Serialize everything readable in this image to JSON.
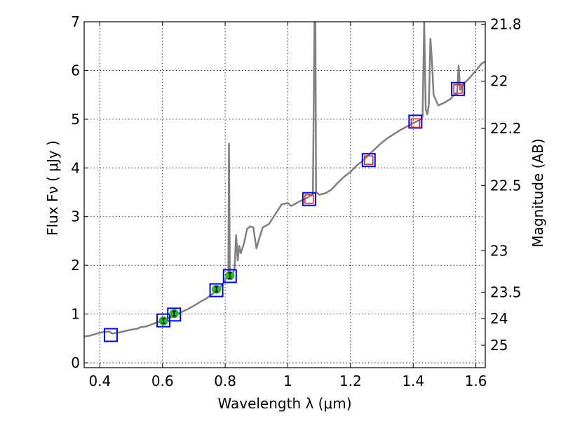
{
  "chart_data": {
    "type": "line",
    "xlabel": "Wavelength  λ (μm)",
    "ylabel": "Flux  Fν  ( μJy )",
    "ylabel_right": "Magnitude (AB)",
    "xlim": [
      0.35,
      1.63
    ],
    "ylim": [
      -0.1,
      7
    ],
    "x_ticks": [
      0.4,
      0.6,
      0.8,
      1.0,
      1.2,
      1.4,
      1.6
    ],
    "x_tick_labels": [
      "0.4",
      "0.6",
      "0.8",
      "1",
      "1.2",
      "1.4",
      "1.6"
    ],
    "y_ticks": [
      0,
      1,
      2,
      3,
      4,
      5,
      6,
      7
    ],
    "y_tick_labels": [
      "0",
      "1",
      "2",
      "3",
      "4",
      "5",
      "6",
      "7"
    ],
    "right_ticks": [
      {
        "flux": 6.95,
        "label": "21.8"
      },
      {
        "flux": 5.78,
        "label": "22"
      },
      {
        "flux": 4.81,
        "label": "22.2"
      },
      {
        "flux": 3.64,
        "label": "22.5"
      },
      {
        "flux": 2.3,
        "label": "23"
      },
      {
        "flux": 1.45,
        "label": "23.5"
      },
      {
        "flux": 0.91,
        "label": "24"
      },
      {
        "flux": 0.36,
        "label": "25"
      }
    ],
    "grid": true,
    "colors": {
      "model": "#808080",
      "observed_box": "#0000ff",
      "model_box": "#dd2222",
      "point": "#22bb22"
    },
    "series": [
      {
        "role": "model-spectrum",
        "points": [
          [
            0.35,
            0.54
          ],
          [
            0.37,
            0.56
          ],
          [
            0.39,
            0.6
          ],
          [
            0.41,
            0.63
          ],
          [
            0.43,
            0.64
          ],
          [
            0.44,
            0.6
          ],
          [
            0.46,
            0.62
          ],
          [
            0.48,
            0.65
          ],
          [
            0.5,
            0.68
          ],
          [
            0.52,
            0.7
          ],
          [
            0.53,
            0.73
          ],
          [
            0.55,
            0.75
          ],
          [
            0.57,
            0.8
          ],
          [
            0.58,
            0.82
          ],
          [
            0.6,
            0.86
          ],
          [
            0.62,
            0.92
          ],
          [
            0.64,
            0.98
          ],
          [
            0.66,
            1.04
          ],
          [
            0.68,
            1.1
          ],
          [
            0.7,
            1.17
          ],
          [
            0.72,
            1.25
          ],
          [
            0.74,
            1.32
          ],
          [
            0.76,
            1.42
          ],
          [
            0.78,
            1.52
          ],
          [
            0.79,
            1.6
          ],
          [
            0.8,
            1.68
          ],
          [
            0.805,
            1.8
          ],
          [
            0.81,
            1.8
          ],
          [
            0.812,
            4.5
          ],
          [
            0.815,
            1.82
          ],
          [
            0.82,
            1.72
          ],
          [
            0.83,
            1.95
          ],
          [
            0.835,
            2.62
          ],
          [
            0.84,
            2.1
          ],
          [
            0.845,
            2.4
          ],
          [
            0.85,
            2.25
          ],
          [
            0.86,
            2.45
          ],
          [
            0.87,
            2.75
          ],
          [
            0.88,
            2.8
          ],
          [
            0.89,
            2.78
          ],
          [
            0.895,
            2.55
          ],
          [
            0.9,
            2.35
          ],
          [
            0.91,
            2.58
          ],
          [
            0.92,
            2.78
          ],
          [
            0.94,
            2.85
          ],
          [
            0.96,
            3.05
          ],
          [
            0.98,
            3.25
          ],
          [
            1.0,
            3.28
          ],
          [
            1.01,
            3.22
          ],
          [
            1.02,
            3.25
          ],
          [
            1.04,
            3.32
          ],
          [
            1.06,
            3.38
          ],
          [
            1.07,
            3.42
          ],
          [
            1.08,
            3.45
          ],
          [
            1.085,
            7.0
          ],
          [
            1.088,
            7.0
          ],
          [
            1.09,
            3.5
          ],
          [
            1.1,
            3.45
          ],
          [
            1.12,
            3.48
          ],
          [
            1.14,
            3.56
          ],
          [
            1.16,
            3.7
          ],
          [
            1.18,
            3.82
          ],
          [
            1.2,
            3.92
          ],
          [
            1.22,
            4.05
          ],
          [
            1.24,
            4.15
          ],
          [
            1.26,
            4.28
          ],
          [
            1.28,
            4.4
          ],
          [
            1.3,
            4.52
          ],
          [
            1.32,
            4.62
          ],
          [
            1.34,
            4.7
          ],
          [
            1.36,
            4.78
          ],
          [
            1.38,
            4.85
          ],
          [
            1.4,
            4.92
          ],
          [
            1.42,
            4.98
          ],
          [
            1.43,
            5.05
          ],
          [
            1.435,
            7.0
          ],
          [
            1.44,
            5.2
          ],
          [
            1.445,
            5.1
          ],
          [
            1.45,
            5.3
          ],
          [
            1.455,
            6.65
          ],
          [
            1.46,
            6.2
          ],
          [
            1.465,
            5.5
          ],
          [
            1.48,
            5.28
          ],
          [
            1.5,
            5.34
          ],
          [
            1.52,
            5.42
          ],
          [
            1.53,
            5.5
          ],
          [
            1.54,
            5.52
          ],
          [
            1.545,
            6.1
          ],
          [
            1.55,
            5.6
          ],
          [
            1.56,
            5.72
          ],
          [
            1.58,
            5.85
          ],
          [
            1.6,
            6.0
          ],
          [
            1.62,
            6.15
          ],
          [
            1.63,
            6.18
          ]
        ]
      },
      {
        "role": "observed-filter-boxes",
        "x": [
          0.435,
          0.603,
          0.637,
          0.772,
          0.815,
          1.068,
          1.258,
          1.407,
          1.543
        ],
        "values": [
          0.57,
          0.87,
          0.99,
          1.49,
          1.78,
          3.36,
          4.16,
          4.95,
          5.62
        ]
      },
      {
        "role": "model-synthetic-photometry",
        "x": [
          1.068,
          1.258,
          1.407,
          1.543
        ],
        "values": [
          3.36,
          4.16,
          4.92,
          5.62
        ]
      },
      {
        "role": "measured-points",
        "x": [
          0.603,
          0.637,
          0.772,
          0.815
        ],
        "values": [
          0.86,
          1.01,
          1.51,
          1.79
        ],
        "errors": [
          0.05,
          0.05,
          0.05,
          0.06
        ]
      }
    ]
  }
}
